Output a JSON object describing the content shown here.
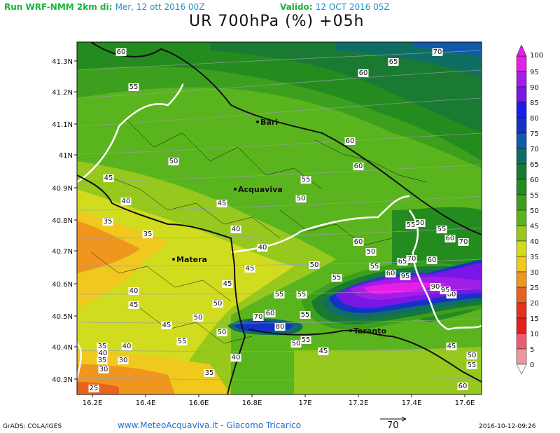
{
  "header": {
    "run_label": "Run WRF-NMM 2km di:",
    "run_date": "Mer, 12 ott 2016 00Z",
    "valid_label": "Valido:",
    "valid_date": "12 OCT 2016 05Z",
    "title": "UR 700hPa (%) +05h"
  },
  "axes": {
    "lon_labels": [
      "16.2E",
      "16.4E",
      "16.6E",
      "16.8E",
      "17E",
      "17.2E",
      "17.4E",
      "17.6E"
    ],
    "lat_labels": [
      "41.3N",
      "41.2N",
      "41.1N",
      "41N",
      "40.9N",
      "40.8N",
      "40.7N",
      "40.6N",
      "40.5N",
      "40.4N",
      "40.3N"
    ]
  },
  "colorbar": {
    "levels": [
      "100",
      "95",
      "90",
      "85",
      "80",
      "75",
      "70",
      "65",
      "60",
      "55",
      "50",
      "45",
      "40",
      "35",
      "30",
      "25",
      "20",
      "15",
      "10",
      "5",
      "0"
    ],
    "colors": [
      "#e61ee6",
      "#a21ee6",
      "#7a16e6",
      "#1e1ee6",
      "#1432c8",
      "#0f5aaa",
      "#0f6e64",
      "#1a7a32",
      "#248c1e",
      "#3ca01e",
      "#5ab41e",
      "#96c81e",
      "#d2dc1e",
      "#f0c81e",
      "#f0961e",
      "#e6641e",
      "#e6321e",
      "#e61e1e",
      "#f05a6e",
      "#f096a0",
      "#ffffff"
    ]
  },
  "cities": [
    {
      "name": "Bari"
    },
    {
      "name": "Acquaviva"
    },
    {
      "name": "Matera"
    },
    {
      "name": "Taranto"
    }
  ],
  "contour_labels": [
    "60",
    "70",
    "65",
    "60",
    "55",
    "60",
    "60",
    "50",
    "45",
    "55",
    "40",
    "45",
    "50",
    "35",
    "35",
    "40",
    "40",
    "55",
    "50",
    "55",
    "60",
    "70",
    "60",
    "50",
    "55",
    "60",
    "45",
    "45",
    "65",
    "70",
    "50",
    "55",
    "95",
    "60",
    "40",
    "45",
    "50",
    "55",
    "55",
    "90",
    "60",
    "95",
    "45",
    "50",
    "60",
    "70",
    "80",
    "55",
    "55",
    "45",
    "50",
    "50",
    "55",
    "40",
    "40",
    "35",
    "35",
    "30",
    "30",
    "35",
    "25",
    "40",
    "45",
    "50",
    "55",
    "60"
  ],
  "footer": {
    "grads": "GrADS: COLA/IGES",
    "site": "www.MeteoAcquaviva.it  -  Giacomo Tricarico",
    "vector_ref": "70",
    "timestamp": "2016-10-12-09:26"
  }
}
